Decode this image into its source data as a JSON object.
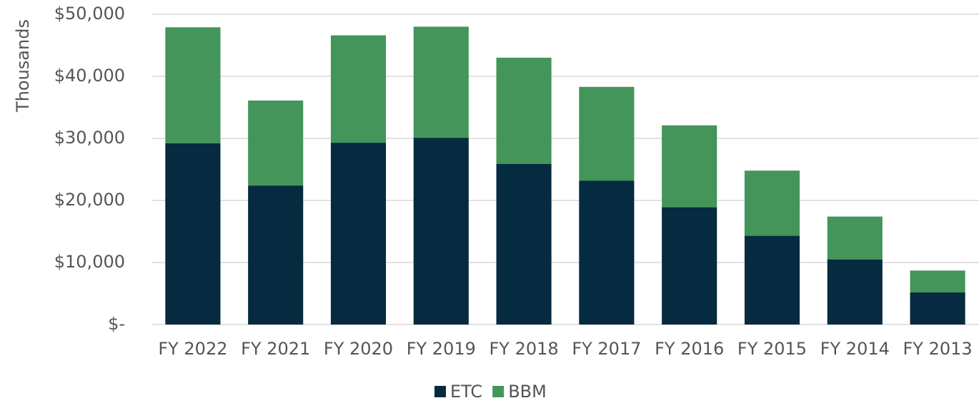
{
  "chart_data": {
    "type": "stacked_bar",
    "ylabel": "Thousands",
    "categories": [
      "FY 2022",
      "FY 2021",
      "FY 2020",
      "FY 2019",
      "FY 2018",
      "FY 2017",
      "FY 2016",
      "FY 2015",
      "FY 2014",
      "FY 2013"
    ],
    "series": [
      {
        "name": "ETC",
        "color": "#062a40",
        "values": [
          29200,
          22400,
          29300,
          30100,
          25900,
          23200,
          18900,
          14300,
          10500,
          5200
        ]
      },
      {
        "name": "BBM",
        "color": "#43955a",
        "values": [
          18700,
          13700,
          17300,
          17900,
          17100,
          15100,
          13200,
          10500,
          6900,
          3500
        ]
      }
    ],
    "ylim": [
      0,
      50000
    ],
    "yticks": [
      {
        "value": 0,
        "label": "$-"
      },
      {
        "value": 10000,
        "label": "$10,000"
      },
      {
        "value": 20000,
        "label": "$20,000"
      },
      {
        "value": 30000,
        "label": "$30,000"
      },
      {
        "value": 40000,
        "label": "$40,000"
      },
      {
        "value": 50000,
        "label": "$50,000"
      }
    ],
    "grid": true,
    "legend": "bottom"
  }
}
